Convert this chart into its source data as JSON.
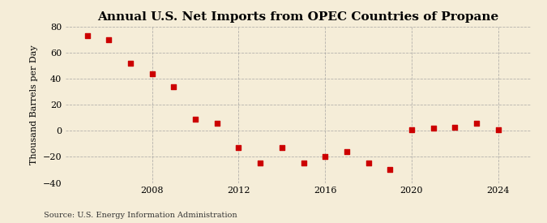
{
  "title": "Annual U.S. Net Imports from OPEC Countries of Propane",
  "ylabel": "Thousand Barrels per Day",
  "source": "Source: U.S. Energy Information Administration",
  "years": [
    2005,
    2006,
    2007,
    2008,
    2009,
    2010,
    2011,
    2012,
    2013,
    2014,
    2015,
    2016,
    2017,
    2018,
    2019,
    2020,
    2021,
    2022,
    2023,
    2024
  ],
  "values": [
    73,
    70,
    52,
    44,
    34,
    9,
    6,
    -13,
    -25,
    -13,
    -25,
    -20,
    -16,
    -25,
    -30,
    1,
    2,
    3,
    6,
    1
  ],
  "marker_color": "#cc0000",
  "background_color": "#f5edd8",
  "grid_color": "#999999",
  "ylim": [
    -40,
    80
  ],
  "yticks": [
    -40,
    -20,
    0,
    20,
    40,
    60,
    80
  ],
  "xticks": [
    2008,
    2012,
    2016,
    2020,
    2024
  ],
  "xlim": [
    2004.0,
    2025.5
  ],
  "title_fontsize": 11,
  "ylabel_fontsize": 8,
  "tick_fontsize": 8,
  "source_fontsize": 7
}
